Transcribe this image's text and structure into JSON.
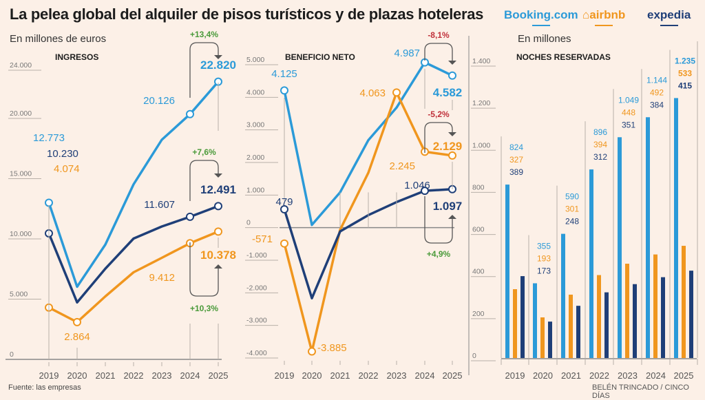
{
  "header": {
    "title": "La pelea global del alquiler de pisos turísticos y de plazas hoteleras",
    "logos": [
      {
        "name": "Booking.com",
        "color": "#2b9ad8"
      },
      {
        "name": "airbnb",
        "color": "#f0961e"
      },
      {
        "name": "expedia",
        "color": "#1f3f78"
      }
    ]
  },
  "subtitles": {
    "left": "En millones de euros",
    "right": "En millones"
  },
  "footer": {
    "source": "Fuente: las empresas",
    "credit": "BELÉN TRINCADO / CINCO DÍAS"
  },
  "colors": {
    "booking": "#2b9ad8",
    "airbnb": "#f0961e",
    "expedia": "#1f3f78",
    "positive": "#4a9a3a",
    "negative": "#c0303a",
    "grid": "#b8b0a8",
    "axis_text": "#777777"
  },
  "chart_data": [
    {
      "type": "line",
      "title": "INGRESOS",
      "unit": "millones de euros",
      "x": [
        2019,
        2020,
        2021,
        2022,
        2023,
        2024,
        2025
      ],
      "ylim": [
        0,
        24000
      ],
      "yticks": [
        0,
        5000,
        10000,
        15000,
        20000,
        24000
      ],
      "ytick_labels": [
        "0",
        "5.000",
        "10.000",
        "15.000",
        "20.000",
        "24.000"
      ],
      "series": [
        {
          "name": "Booking.com",
          "values": [
            12773,
            5800,
            9300,
            14300,
            18000,
            20126,
            22820
          ]
        },
        {
          "name": "airbnb",
          "values": [
            4074,
            2864,
            5000,
            7000,
            8200,
            9412,
            10378
          ]
        },
        {
          "name": "expedia",
          "values": [
            10230,
            4500,
            7300,
            9800,
            10800,
            11607,
            12491
          ]
        }
      ],
      "labels": [
        {
          "series": "Booking.com",
          "year": 2019,
          "text": "12.773"
        },
        {
          "series": "expedia",
          "year": 2019,
          "text": "10.230"
        },
        {
          "series": "airbnb",
          "year": 2019,
          "text": "4.074"
        },
        {
          "series": "airbnb",
          "year": 2020,
          "text": "2.864"
        },
        {
          "series": "Booking.com",
          "year": 2024,
          "text": "20.126"
        },
        {
          "series": "Booking.com",
          "year": 2025,
          "text": "22.820"
        },
        {
          "series": "expedia",
          "year": 2024,
          "text": "11.607"
        },
        {
          "series": "expedia",
          "year": 2025,
          "text": "12.491"
        },
        {
          "series": "airbnb",
          "year": 2024,
          "text": "9.412"
        },
        {
          "series": "airbnb",
          "year": 2025,
          "text": "10.378"
        }
      ],
      "changes": [
        {
          "series": "Booking.com",
          "text": "+13,4%",
          "sign": "positive"
        },
        {
          "series": "expedia",
          "text": "+7,6%",
          "sign": "positive"
        },
        {
          "series": "airbnb",
          "text": "+10,3%",
          "sign": "positive"
        }
      ]
    },
    {
      "type": "line",
      "title": "BENEFICIO NETO",
      "unit": "millones de euros",
      "x": [
        2019,
        2020,
        2021,
        2022,
        2023,
        2024,
        2025
      ],
      "ylim": [
        -4000,
        5000
      ],
      "yticks": [
        -4000,
        -3000,
        -2000,
        -1000,
        0,
        1000,
        2000,
        3000,
        4000,
        5000
      ],
      "ytick_labels": [
        "-4.000",
        "-3.000",
        "-2.000",
        "-1.000",
        "0",
        "1.000",
        "2.000",
        "3.000",
        "4.000",
        "5.000"
      ],
      "series": [
        {
          "name": "Booking.com",
          "values": [
            4125,
            0,
            1000,
            2600,
            3600,
            4987,
            4582
          ]
        },
        {
          "name": "airbnb",
          "values": [
            -571,
            -3885,
            -150,
            1600,
            4063,
            2245,
            2129
          ]
        },
        {
          "name": "expedia",
          "values": [
            479,
            -2250,
            -200,
            300,
            700,
            1046,
            1097
          ]
        }
      ],
      "labels": [
        {
          "series": "Booking.com",
          "year": 2019,
          "text": "4.125"
        },
        {
          "series": "expedia",
          "year": 2019,
          "text": "479"
        },
        {
          "series": "airbnb",
          "year": 2019,
          "text": "-571"
        },
        {
          "series": "airbnb",
          "year": 2020,
          "text": "-3.885"
        },
        {
          "series": "airbnb",
          "year": 2023,
          "text": "4.063"
        },
        {
          "series": "Booking.com",
          "year": 2024,
          "text": "4.987"
        },
        {
          "series": "Booking.com",
          "year": 2025,
          "text": "4.582"
        },
        {
          "series": "airbnb",
          "year": 2024,
          "text": "2.245"
        },
        {
          "series": "airbnb",
          "year": 2025,
          "text": "2.129"
        },
        {
          "series": "expedia",
          "year": 2024,
          "text": "1.046"
        },
        {
          "series": "expedia",
          "year": 2025,
          "text": "1.097"
        }
      ],
      "changes": [
        {
          "series": "Booking.com",
          "text": "-8,1%",
          "sign": "negative"
        },
        {
          "series": "airbnb",
          "text": "-5,2%",
          "sign": "negative"
        },
        {
          "series": "expedia",
          "text": "+4,9%",
          "sign": "positive"
        }
      ]
    },
    {
      "type": "bar",
      "title": "NOCHES RESERVADAS",
      "unit": "millones",
      "categories": [
        2019,
        2020,
        2021,
        2022,
        2023,
        2024,
        2025
      ],
      "ylim": [
        0,
        1400
      ],
      "yticks": [
        0,
        200,
        400,
        600,
        800,
        1000,
        1200,
        1400
      ],
      "ytick_labels": [
        "0",
        "200",
        "400",
        "600",
        "800",
        "1.000",
        "1.200",
        "1.400"
      ],
      "series": [
        {
          "name": "Booking.com",
          "values": [
            824,
            355,
            590,
            896,
            1049,
            1144,
            1235
          ],
          "labels": [
            "824",
            "355",
            "590",
            "896",
            "1.049",
            "1.144",
            "1.235"
          ]
        },
        {
          "name": "airbnb",
          "values": [
            327,
            193,
            301,
            394,
            448,
            492,
            533
          ],
          "labels": [
            "327",
            "193",
            "301",
            "394",
            "448",
            "492",
            "533"
          ]
        },
        {
          "name": "expedia",
          "values": [
            389,
            173,
            248,
            312,
            351,
            384,
            415
          ],
          "labels": [
            "389",
            "173",
            "248",
            "312",
            "351",
            "384",
            "415"
          ]
        }
      ]
    }
  ]
}
